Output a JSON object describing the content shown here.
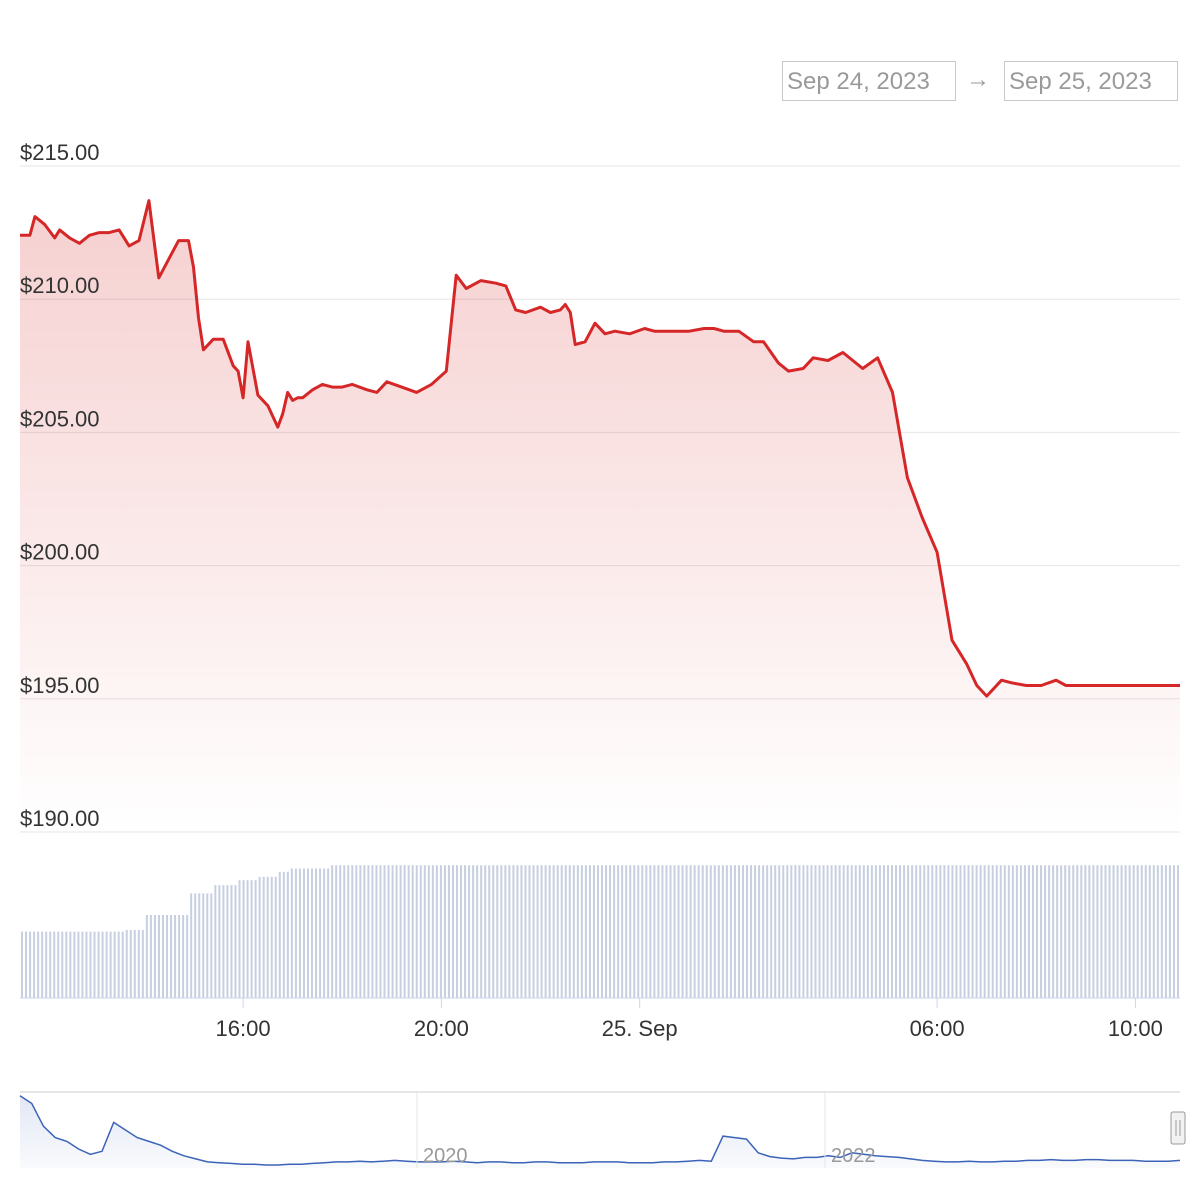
{
  "range_selector": {
    "from": "Sep 24, 2023",
    "arrow": "→",
    "to": "Sep 25, 2023"
  },
  "colors": {
    "price_line": "#d62728",
    "volume_bar": "#c7cfe0",
    "navigator_line": "#3b63b8",
    "grid": "#e6e6e6",
    "label": "#333333"
  },
  "chart_data": {
    "type": "line",
    "y_tick_labels": [
      "$215.00",
      "$210.00",
      "$205.00",
      "$200.00",
      "$195.00",
      "$190.00"
    ],
    "y_ticks": [
      215,
      210,
      205,
      200,
      195,
      190
    ],
    "ylim": [
      190,
      215
    ],
    "x_tick_labels": [
      "16:00",
      "20:00",
      "25. Sep",
      "06:00",
      "10:00"
    ],
    "x_ticks": [
      15.5,
      19.5,
      23.5,
      29.5,
      33.5
    ],
    "xlim": [
      11.0,
      34.4
    ],
    "grid": true,
    "series": [
      {
        "x": [
          11.0,
          11.2,
          11.3,
          11.5,
          11.7,
          11.8,
          12.0,
          12.2,
          12.4,
          12.6,
          12.8,
          13.0,
          13.2,
          13.4,
          13.6,
          13.8,
          14.0,
          14.2,
          14.4,
          14.5,
          14.6,
          14.7,
          14.9,
          15.1,
          15.3,
          15.4,
          15.5,
          15.6,
          15.8,
          16.0,
          16.1,
          16.2,
          16.3,
          16.4,
          16.5,
          16.6,
          16.7,
          16.9,
          17.1,
          17.3,
          17.5,
          17.7,
          18.0,
          18.2,
          18.4,
          18.7,
          19.0,
          19.3,
          19.6,
          19.8,
          20.0,
          20.3,
          20.6,
          20.8,
          21.0,
          21.2,
          21.5,
          21.7,
          21.9,
          22.0,
          22.1,
          22.2,
          22.4,
          22.6,
          22.8,
          23.0,
          23.3,
          23.6,
          23.8,
          24.0,
          24.2,
          24.5,
          24.8,
          25.0,
          25.2,
          25.5,
          25.8,
          26.0,
          26.3,
          26.5,
          26.8,
          27.0,
          27.3,
          27.6,
          28.0,
          28.3,
          28.6,
          28.9,
          29.2,
          29.5,
          29.8,
          30.1,
          30.3,
          30.5,
          30.8,
          31.0,
          31.3,
          31.6,
          31.9,
          32.1,
          32.3,
          32.5,
          32.8,
          33.0,
          33.2,
          33.3,
          33.5,
          33.6,
          33.7,
          33.8,
          34.0,
          34.2,
          34.4
        ],
        "y": [
          212.4,
          212.4,
          213.1,
          212.8,
          212.3,
          212.6,
          212.3,
          212.1,
          212.4,
          212.5,
          212.5,
          212.6,
          212.0,
          212.2,
          213.7,
          210.8,
          211.5,
          212.2,
          212.2,
          211.2,
          209.3,
          208.1,
          208.5,
          208.5,
          207.5,
          207.3,
          206.3,
          208.4,
          206.4,
          206.0,
          205.6,
          205.2,
          205.7,
          206.5,
          206.2,
          206.3,
          206.3,
          206.6,
          206.8,
          206.7,
          206.7,
          206.8,
          206.6,
          206.5,
          206.9,
          206.7,
          206.5,
          206.8,
          207.3,
          210.9,
          210.4,
          210.7,
          210.6,
          210.5,
          209.6,
          209.5,
          209.7,
          209.5,
          209.6,
          209.8,
          209.5,
          208.3,
          208.4,
          209.1,
          208.7,
          208.8,
          208.7,
          208.9,
          208.8,
          208.8,
          208.8,
          208.8,
          208.9,
          208.9,
          208.8,
          208.8,
          208.4,
          208.4,
          207.6,
          207.3,
          207.4,
          207.8,
          207.7,
          208.0,
          207.4,
          207.8,
          206.5,
          203.3,
          201.8,
          200.5,
          197.2,
          196.3,
          195.5,
          195.1,
          195.7,
          195.6,
          195.5,
          195.5,
          195.7,
          195.5,
          195.5,
          195.5,
          195.5,
          195.5,
          195.5,
          195.5,
          195.5,
          195.5,
          195.5,
          195.5,
          195.5,
          195.5,
          195.5
        ]
      }
    ],
    "volume": {
      "levels": [
        0.4,
        0.4,
        0.4,
        0.4,
        0.4,
        0.4,
        0.4,
        0.4,
        0.4,
        0.4,
        0.4,
        0.4,
        0.4,
        0.4,
        0.4,
        0.4,
        0.4,
        0.4,
        0.4,
        0.4,
        0.4,
        0.4,
        0.4,
        0.4,
        0.4,
        0.4,
        0.41,
        0.41,
        0.41,
        0.41,
        0.41,
        0.5,
        0.5,
        0.5,
        0.5,
        0.5,
        0.5,
        0.5,
        0.5,
        0.5,
        0.5,
        0.5,
        0.63,
        0.63,
        0.63,
        0.63,
        0.63,
        0.63,
        0.68,
        0.68,
        0.68,
        0.68,
        0.68,
        0.68,
        0.71,
        0.71,
        0.71,
        0.71,
        0.71,
        0.73,
        0.73,
        0.73,
        0.73,
        0.73,
        0.76,
        0.76,
        0.76,
        0.78,
        0.78,
        0.78,
        0.78,
        0.78,
        0.78,
        0.78,
        0.78,
        0.78,
        0.78,
        0.8,
        0.8,
        0.8,
        0.8,
        0.8,
        0.8,
        0.8,
        0.8,
        0.8,
        0.8,
        0.8,
        0.8,
        0.8,
        0.8,
        0.8,
        0.8,
        0.8,
        0.8,
        0.8,
        0.8,
        0.8,
        0.8,
        0.8,
        0.8,
        0.8,
        0.8,
        0.8,
        0.8,
        0.8,
        0.8,
        0.8,
        0.8,
        0.8,
        0.8,
        0.8,
        0.8,
        0.8,
        0.8,
        0.8,
        0.8,
        0.8,
        0.8,
        0.8,
        0.8,
        0.8,
        0.8,
        0.8,
        0.8,
        0.8,
        0.8,
        0.8,
        0.8,
        0.8,
        0.8,
        0.8,
        0.8,
        0.8,
        0.8,
        0.8,
        0.8,
        0.8,
        0.8,
        0.8,
        0.8,
        0.8,
        0.8,
        0.8,
        0.8,
        0.8,
        0.8,
        0.8,
        0.8,
        0.8,
        0.8,
        0.8,
        0.8,
        0.8,
        0.8,
        0.8,
        0.8,
        0.8,
        0.8,
        0.8,
        0.8,
        0.8,
        0.8,
        0.8,
        0.8,
        0.8,
        0.8,
        0.8,
        0.8,
        0.8,
        0.8,
        0.8,
        0.8,
        0.8,
        0.8,
        0.8,
        0.8,
        0.8,
        0.8,
        0.8,
        0.8,
        0.8,
        0.8,
        0.8,
        0.8,
        0.8,
        0.8,
        0.8,
        0.8,
        0.8,
        0.8,
        0.8,
        0.8,
        0.8,
        0.8,
        0.8,
        0.8,
        0.8,
        0.8,
        0.8,
        0.8,
        0.8,
        0.8,
        0.8,
        0.8,
        0.8,
        0.8,
        0.8,
        0.8,
        0.8,
        0.8,
        0.8,
        0.8,
        0.8,
        0.8,
        0.8,
        0.8,
        0.8,
        0.8,
        0.8,
        0.8,
        0.8,
        0.8,
        0.8,
        0.8,
        0.8,
        0.8,
        0.8,
        0.8,
        0.8,
        0.8,
        0.8,
        0.8,
        0.8,
        0.8,
        0.8,
        0.8,
        0.8,
        0.8,
        0.8,
        0.8,
        0.8,
        0.8,
        0.8,
        0.8,
        0.8,
        0.8,
        0.8,
        0.8,
        0.8,
        0.8,
        0.8,
        0.8,
        0.8,
        0.8,
        0.8,
        0.8,
        0.8,
        0.8,
        0.8,
        0.8,
        0.8,
        0.8,
        0.8,
        0.8,
        0.8,
        0.8,
        0.8,
        0.8,
        0.8,
        0.8,
        0.8,
        0.8,
        0.8,
        0.8,
        0.8,
        0.8,
        0.8,
        0.8,
        0.8,
        0.8,
        0.8,
        0.8,
        0.8,
        0.8,
        0.8,
        0.8,
        0.8
      ]
    },
    "navigator": {
      "x_tick_labels": [
        "2020",
        "2022"
      ],
      "values": [
        0.95,
        0.85,
        0.55,
        0.4,
        0.35,
        0.25,
        0.18,
        0.22,
        0.6,
        0.5,
        0.4,
        0.35,
        0.3,
        0.22,
        0.16,
        0.12,
        0.08,
        0.07,
        0.06,
        0.05,
        0.05,
        0.04,
        0.04,
        0.05,
        0.05,
        0.06,
        0.07,
        0.08,
        0.08,
        0.09,
        0.08,
        0.09,
        0.1,
        0.09,
        0.08,
        0.08,
        0.08,
        0.09,
        0.08,
        0.07,
        0.08,
        0.08,
        0.07,
        0.07,
        0.08,
        0.08,
        0.07,
        0.07,
        0.07,
        0.08,
        0.08,
        0.08,
        0.07,
        0.07,
        0.07,
        0.08,
        0.08,
        0.09,
        0.1,
        0.09,
        0.42,
        0.4,
        0.38,
        0.2,
        0.15,
        0.13,
        0.12,
        0.14,
        0.14,
        0.16,
        0.14,
        0.2,
        0.18,
        0.16,
        0.15,
        0.14,
        0.12,
        0.1,
        0.09,
        0.08,
        0.08,
        0.09,
        0.08,
        0.08,
        0.09,
        0.09,
        0.1,
        0.1,
        0.11,
        0.1,
        0.1,
        0.11,
        0.11,
        0.1,
        0.1,
        0.1,
        0.09,
        0.09,
        0.09,
        0.1
      ]
    }
  }
}
